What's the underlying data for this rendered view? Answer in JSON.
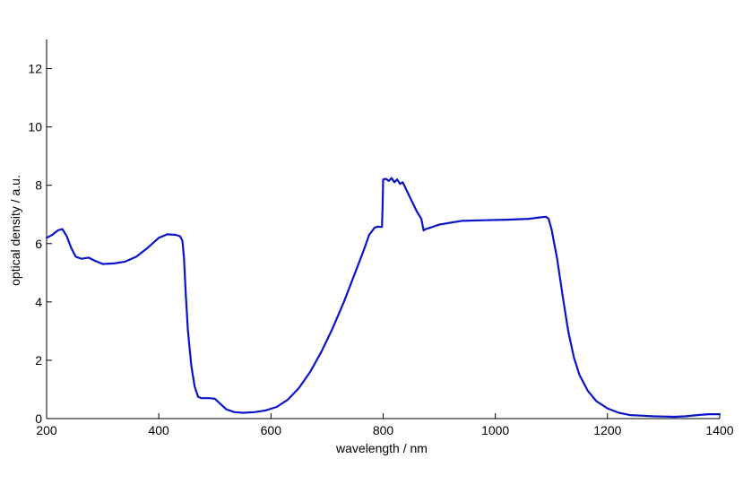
{
  "chart_data": {
    "type": "line",
    "title": "",
    "xlabel": "wavelength / nm",
    "ylabel": "optical density / a.u.",
    "xlim": [
      200,
      1400
    ],
    "ylim": [
      0,
      13
    ],
    "xticks": [
      200,
      400,
      600,
      800,
      1000,
      1200,
      1400
    ],
    "yticks": [
      0,
      2,
      4,
      6,
      8,
      10,
      12
    ],
    "xtick_labels": [
      "200",
      "400",
      "600",
      "800",
      "1000",
      "1200",
      "1400"
    ],
    "ytick_labels": [
      "0",
      "2",
      "4",
      "6",
      "8",
      "10",
      "12"
    ],
    "grid": false,
    "legend": "none",
    "line_color": "#0a14c8",
    "series": [
      {
        "x": [
          200,
          210,
          220,
          228,
          236,
          244,
          252,
          262,
          275,
          285,
          300,
          320,
          340,
          360,
          380,
          400,
          415,
          430,
          438,
          442,
          445,
          448,
          452,
          458,
          464,
          470,
          476,
          482,
          490,
          500,
          510,
          520,
          535,
          550,
          570,
          590,
          610,
          630,
          650,
          670,
          690,
          710,
          730,
          750,
          765,
          775,
          785,
          790,
          798,
          799,
          800,
          805,
          810,
          815,
          820,
          825,
          830,
          835,
          840,
          850,
          860,
          868,
          872,
          876,
          880,
          900,
          940,
          980,
          1020,
          1060,
          1080,
          1090,
          1095,
          1100,
          1110,
          1120,
          1130,
          1140,
          1150,
          1165,
          1180,
          1200,
          1220,
          1240,
          1260,
          1280,
          1300,
          1320,
          1340,
          1360,
          1380,
          1400
        ],
        "y": [
          6.2,
          6.3,
          6.45,
          6.5,
          6.25,
          5.85,
          5.55,
          5.48,
          5.52,
          5.42,
          5.3,
          5.32,
          5.38,
          5.55,
          5.85,
          6.2,
          6.32,
          6.3,
          6.25,
          6.1,
          5.5,
          4.3,
          3.0,
          1.8,
          1.1,
          0.75,
          0.7,
          0.7,
          0.7,
          0.68,
          0.5,
          0.32,
          0.22,
          0.2,
          0.22,
          0.28,
          0.4,
          0.65,
          1.05,
          1.6,
          2.3,
          3.1,
          4.0,
          5.0,
          5.75,
          6.3,
          6.55,
          6.58,
          6.57,
          7.3,
          8.2,
          8.22,
          8.15,
          8.25,
          8.1,
          8.2,
          8.05,
          8.1,
          7.9,
          7.5,
          7.1,
          6.85,
          6.45,
          6.5,
          6.52,
          6.65,
          6.78,
          6.8,
          6.82,
          6.85,
          6.9,
          6.92,
          6.85,
          6.5,
          5.5,
          4.2,
          3.0,
          2.1,
          1.5,
          0.95,
          0.6,
          0.35,
          0.2,
          0.12,
          0.1,
          0.08,
          0.07,
          0.06,
          0.08,
          0.12,
          0.15,
          0.15
        ]
      }
    ]
  }
}
